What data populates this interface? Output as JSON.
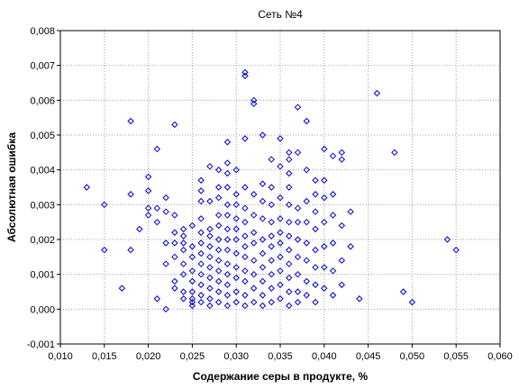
{
  "chart_data": {
    "type": "scatter",
    "title": "Сеть №4",
    "xlabel": "Содержание серы в продукте, %",
    "ylabel": "Абсолютная ошибка",
    "xlim": [
      0.01,
      0.06
    ],
    "ylim": [
      -0.001,
      0.008
    ],
    "grid": true,
    "marker": "diamond",
    "marker_color": "#0000cc",
    "x_ticks": [
      "0,010",
      "0,015",
      "0,020",
      "0,025",
      "0,030",
      "0,035",
      "0,040",
      "0,045",
      "0,050",
      "0,055",
      "0,060"
    ],
    "y_ticks": [
      "-0,001",
      "0,000",
      "0,001",
      "0,002",
      "0,003",
      "0,004",
      "0,005",
      "0,006",
      "0,007",
      "0,008"
    ],
    "points": [
      [
        0.013,
        0.0035
      ],
      [
        0.015,
        0.003
      ],
      [
        0.015,
        0.0017
      ],
      [
        0.017,
        0.0006
      ],
      [
        0.018,
        0.0054
      ],
      [
        0.018,
        0.0033
      ],
      [
        0.018,
        0.0017
      ],
      [
        0.019,
        0.0023
      ],
      [
        0.02,
        0.0038
      ],
      [
        0.02,
        0.0034
      ],
      [
        0.02,
        0.0029
      ],
      [
        0.02,
        0.0027
      ],
      [
        0.021,
        0.0046
      ],
      [
        0.021,
        0.0029
      ],
      [
        0.021,
        0.0025
      ],
      [
        0.021,
        0.0003
      ],
      [
        0.022,
        0.0032
      ],
      [
        0.022,
        0.0028
      ],
      [
        0.022,
        0.0019
      ],
      [
        0.022,
        0.0013
      ],
      [
        0.022,
        0.0
      ],
      [
        0.023,
        0.0053
      ],
      [
        0.023,
        0.0027
      ],
      [
        0.023,
        0.0022
      ],
      [
        0.023,
        0.0019
      ],
      [
        0.023,
        0.0015
      ],
      [
        0.023,
        0.0008
      ],
      [
        0.023,
        0.0006
      ],
      [
        0.024,
        0.0023
      ],
      [
        0.024,
        0.0021
      ],
      [
        0.024,
        0.0019
      ],
      [
        0.024,
        0.0017
      ],
      [
        0.024,
        0.0013
      ],
      [
        0.024,
        0.001
      ],
      [
        0.024,
        0.0005
      ],
      [
        0.024,
        0.0003
      ],
      [
        0.025,
        0.0024
      ],
      [
        0.025,
        0.0018
      ],
      [
        0.025,
        0.0015
      ],
      [
        0.025,
        0.0011
      ],
      [
        0.025,
        0.0008
      ],
      [
        0.025,
        0.0005
      ],
      [
        0.025,
        0.0003
      ],
      [
        0.025,
        0.0002
      ],
      [
        0.025,
        0.0001
      ],
      [
        0.026,
        0.0037
      ],
      [
        0.026,
        0.0034
      ],
      [
        0.026,
        0.0031
      ],
      [
        0.026,
        0.0026
      ],
      [
        0.026,
        0.0022
      ],
      [
        0.026,
        0.0019
      ],
      [
        0.026,
        0.0016
      ],
      [
        0.026,
        0.0013
      ],
      [
        0.026,
        0.001
      ],
      [
        0.026,
        0.0007
      ],
      [
        0.026,
        0.0004
      ],
      [
        0.026,
        0.0002
      ],
      [
        0.027,
        0.0041
      ],
      [
        0.027,
        0.0031
      ],
      [
        0.027,
        0.0023
      ],
      [
        0.027,
        0.0021
      ],
      [
        0.027,
        0.0018
      ],
      [
        0.027,
        0.0015
      ],
      [
        0.027,
        0.0012
      ],
      [
        0.027,
        0.0009
      ],
      [
        0.027,
        0.0006
      ],
      [
        0.027,
        0.0003
      ],
      [
        0.027,
        0.0001
      ],
      [
        0.028,
        0.004
      ],
      [
        0.028,
        0.0035
      ],
      [
        0.028,
        0.0032
      ],
      [
        0.028,
        0.0027
      ],
      [
        0.028,
        0.0024
      ],
      [
        0.028,
        0.002
      ],
      [
        0.028,
        0.0017
      ],
      [
        0.028,
        0.0014
      ],
      [
        0.028,
        0.0011
      ],
      [
        0.028,
        0.0008
      ],
      [
        0.028,
        0.0005
      ],
      [
        0.028,
        0.0002
      ],
      [
        0.029,
        0.0048
      ],
      [
        0.029,
        0.0042
      ],
      [
        0.029,
        0.0039
      ],
      [
        0.029,
        0.0035
      ],
      [
        0.029,
        0.003
      ],
      [
        0.029,
        0.0027
      ],
      [
        0.029,
        0.0023
      ],
      [
        0.029,
        0.002
      ],
      [
        0.029,
        0.0017
      ],
      [
        0.029,
        0.0013
      ],
      [
        0.029,
        0.001
      ],
      [
        0.029,
        0.0007
      ],
      [
        0.029,
        0.0004
      ],
      [
        0.029,
        0.0001
      ],
      [
        0.03,
        0.004
      ],
      [
        0.03,
        0.0033
      ],
      [
        0.03,
        0.003
      ],
      [
        0.03,
        0.0026
      ],
      [
        0.03,
        0.0023
      ],
      [
        0.03,
        0.002
      ],
      [
        0.03,
        0.0016
      ],
      [
        0.03,
        0.0012
      ],
      [
        0.03,
        0.0009
      ],
      [
        0.03,
        0.0005
      ],
      [
        0.03,
        0.0002
      ],
      [
        0.031,
        0.0068
      ],
      [
        0.031,
        0.0067
      ],
      [
        0.031,
        0.0049
      ],
      [
        0.031,
        0.0035
      ],
      [
        0.031,
        0.0029
      ],
      [
        0.031,
        0.0025
      ],
      [
        0.031,
        0.0021
      ],
      [
        0.031,
        0.0018
      ],
      [
        0.031,
        0.0015
      ],
      [
        0.031,
        0.0011
      ],
      [
        0.031,
        0.0008
      ],
      [
        0.031,
        0.0004
      ],
      [
        0.031,
        0.0001
      ],
      [
        0.032,
        0.006
      ],
      [
        0.032,
        0.0059
      ],
      [
        0.032,
        0.0033
      ],
      [
        0.032,
        0.0027
      ],
      [
        0.032,
        0.0022
      ],
      [
        0.032,
        0.0019
      ],
      [
        0.032,
        0.0014
      ],
      [
        0.032,
        0.001
      ],
      [
        0.032,
        0.0006
      ],
      [
        0.032,
        0.0002
      ],
      [
        0.033,
        0.005
      ],
      [
        0.033,
        0.0036
      ],
      [
        0.033,
        0.0031
      ],
      [
        0.033,
        0.0026
      ],
      [
        0.033,
        0.002
      ],
      [
        0.033,
        0.0016
      ],
      [
        0.033,
        0.0012
      ],
      [
        0.033,
        0.0008
      ],
      [
        0.033,
        0.0004
      ],
      [
        0.033,
        0.0001
      ],
      [
        0.034,
        0.0043
      ],
      [
        0.034,
        0.0035
      ],
      [
        0.034,
        0.003
      ],
      [
        0.034,
        0.0025
      ],
      [
        0.034,
        0.0021
      ],
      [
        0.034,
        0.0018
      ],
      [
        0.034,
        0.0014
      ],
      [
        0.034,
        0.001
      ],
      [
        0.034,
        0.0006
      ],
      [
        0.034,
        0.0002
      ],
      [
        0.035,
        0.0049
      ],
      [
        0.035,
        0.0041
      ],
      [
        0.035,
        0.0032
      ],
      [
        0.035,
        0.0026
      ],
      [
        0.035,
        0.0022
      ],
      [
        0.035,
        0.0019
      ],
      [
        0.035,
        0.0015
      ],
      [
        0.035,
        0.0011
      ],
      [
        0.035,
        0.0007
      ],
      [
        0.035,
        0.0003
      ],
      [
        0.036,
        0.0045
      ],
      [
        0.036,
        0.0043
      ],
      [
        0.036,
        0.0039
      ],
      [
        0.036,
        0.0035
      ],
      [
        0.036,
        0.003
      ],
      [
        0.036,
        0.0025
      ],
      [
        0.036,
        0.0021
      ],
      [
        0.036,
        0.0017
      ],
      [
        0.036,
        0.0013
      ],
      [
        0.036,
        0.0009
      ],
      [
        0.036,
        0.0005
      ],
      [
        0.036,
        0.0001
      ],
      [
        0.037,
        0.0058
      ],
      [
        0.037,
        0.0045
      ],
      [
        0.037,
        0.0029
      ],
      [
        0.037,
        0.0025
      ],
      [
        0.037,
        0.002
      ],
      [
        0.037,
        0.0015
      ],
      [
        0.037,
        0.001
      ],
      [
        0.037,
        0.0005
      ],
      [
        0.037,
        0.0002
      ],
      [
        0.038,
        0.0054
      ],
      [
        0.038,
        0.004
      ],
      [
        0.038,
        0.0031
      ],
      [
        0.038,
        0.0025
      ],
      [
        0.038,
        0.0019
      ],
      [
        0.038,
        0.0014
      ],
      [
        0.038,
        0.0008
      ],
      [
        0.038,
        0.0004
      ],
      [
        0.039,
        0.0037
      ],
      [
        0.039,
        0.0033
      ],
      [
        0.039,
        0.0028
      ],
      [
        0.039,
        0.0023
      ],
      [
        0.039,
        0.0017
      ],
      [
        0.039,
        0.0012
      ],
      [
        0.039,
        0.0007
      ],
      [
        0.039,
        0.0002
      ],
      [
        0.04,
        0.0046
      ],
      [
        0.04,
        0.0037
      ],
      [
        0.04,
        0.0032
      ],
      [
        0.04,
        0.0025
      ],
      [
        0.04,
        0.0018
      ],
      [
        0.04,
        0.0012
      ],
      [
        0.04,
        0.0006
      ],
      [
        0.041,
        0.0044
      ],
      [
        0.041,
        0.0033
      ],
      [
        0.041,
        0.0027
      ],
      [
        0.041,
        0.0019
      ],
      [
        0.041,
        0.0011
      ],
      [
        0.041,
        0.0004
      ],
      [
        0.042,
        0.0045
      ],
      [
        0.042,
        0.0043
      ],
      [
        0.042,
        0.0024
      ],
      [
        0.042,
        0.0014
      ],
      [
        0.042,
        0.0007
      ],
      [
        0.043,
        0.0028
      ],
      [
        0.043,
        0.0018
      ],
      [
        0.044,
        0.0003
      ],
      [
        0.046,
        0.0062
      ],
      [
        0.048,
        0.0045
      ],
      [
        0.049,
        0.0005
      ],
      [
        0.05,
        0.0002
      ],
      [
        0.054,
        0.002
      ],
      [
        0.055,
        0.0017
      ]
    ]
  }
}
